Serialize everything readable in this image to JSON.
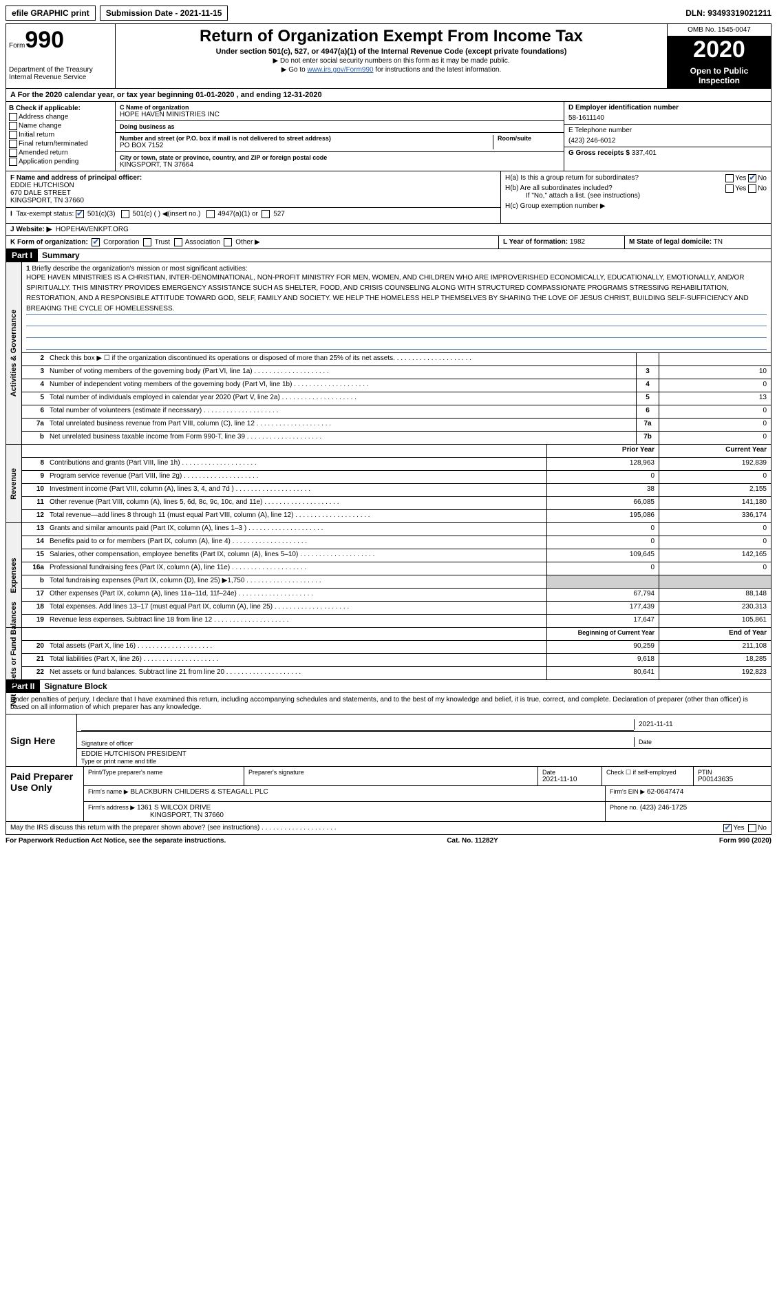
{
  "topbar": {
    "efile": "efile GRAPHIC print",
    "sub_label": "Submission Date - ",
    "sub_date": "2021-11-15",
    "dln_label": "DLN: ",
    "dln": "93493319021211"
  },
  "header": {
    "form_word": "Form",
    "form_num": "990",
    "dept": "Department of the Treasury\nInternal Revenue Service",
    "title": "Return of Organization Exempt From Income Tax",
    "sub": "Under section 501(c), 527, or 4947(a)(1) of the Internal Revenue Code (except private foundations)",
    "note1": "▶ Do not enter social security numbers on this form as it may be made public.",
    "note2_a": "▶ Go to ",
    "note2_link": "www.irs.gov/Form990",
    "note2_b": " for instructions and the latest information.",
    "omb": "OMB No. 1545-0047",
    "year": "2020",
    "openpub": "Open to Public Inspection"
  },
  "row_a": "A For the 2020 calendar year, or tax year beginning 01-01-2020    , and ending 12-31-2020",
  "box_b": {
    "hdr": "B Check if applicable:",
    "opts": [
      "Address change",
      "Name change",
      "Initial return",
      "Final return/terminated",
      "Amended return",
      "Application pending"
    ]
  },
  "box_c": {
    "lbl_name": "C Name of organization",
    "name": "HOPE HAVEN MINISTRIES INC",
    "dba_lbl": "Doing business as",
    "dba": "",
    "addr_lbl": "Number and street (or P.O. box if mail is not delivered to street address)",
    "room_lbl": "Room/suite",
    "addr": "PO BOX 7152",
    "city_lbl": "City or town, state or province, country, and ZIP or foreign postal code",
    "city": "KINGSPORT, TN  37664"
  },
  "box_d": {
    "lbl": "D Employer identification number",
    "val": "58-1611140"
  },
  "box_e": {
    "lbl": "E Telephone number",
    "val": "(423) 246-6012"
  },
  "box_g": {
    "lbl": "G Gross receipts $",
    "val": "337,401"
  },
  "box_f": {
    "lbl": "F  Name and address of principal officer:",
    "name": "EDDIE HUTCHISON",
    "addr": "670 DALE STREET",
    "city": "KINGSPORT, TN  37660"
  },
  "box_h": {
    "a": "H(a)  Is this a group return for subordinates?",
    "b": "H(b)  Are all subordinates included?",
    "b_note": "If \"No,\" attach a list. (see instructions)",
    "c": "H(c)  Group exemption number ▶"
  },
  "box_i": {
    "lbl": "Tax-exempt status:",
    "o1": "501(c)(3)",
    "o2": "501(c) (  ) ◀(insert no.)",
    "o3": "4947(a)(1) or",
    "o4": "527"
  },
  "box_j": {
    "lbl": "J Website: ▶",
    "val": "HOPEHAVENKPT.ORG"
  },
  "box_k": {
    "lbl": "K Form of organization:",
    "o1": "Corporation",
    "o2": "Trust",
    "o3": "Association",
    "o4": "Other ▶"
  },
  "box_l": {
    "lbl": "L Year of formation:",
    "val": "1982"
  },
  "box_m": {
    "lbl": "M State of legal domicile:",
    "val": "TN"
  },
  "part1": {
    "hdr": "Part I",
    "title": "Summary"
  },
  "mission": {
    "num": "1",
    "lbl": "Briefly describe the organization's mission or most significant activities:",
    "txt": "HOPE HAVEN MINISTRIES IS A CHRISTIAN, INTER-DENOMINATIONAL, NON-PROFIT MINISTRY FOR MEN, WOMEN, AND CHILDREN WHO ARE IMPROVERISHED ECONOMICALLY, EDUCATIONALLY, EMOTIONALLY, AND/OR SPIRITUALLY. THIS MINISTRY PROVIDES EMERGENCY ASSISTANCE SUCH AS SHELTER, FOOD, AND CRISIS COUNSELING ALONG WITH STRUCTURED COMPASSIONATE PROGRAMS STRESSING REHABILITATION, RESTORATION, AND A RESPONSIBLE ATTITUDE TOWARD GOD, SELF, FAMILY AND SOCIETY. WE HELP THE HOMELESS HELP THEMSELVES BY SHARING THE LOVE OF JESUS CHRIST, BUILDING SELF-SUFFICIENCY AND BREAKING THE CYCLE OF HOMELESSNESS."
  },
  "gov_lines": [
    {
      "n": "2",
      "t": "Check this box ▶ ☐  if the organization discontinued its operations or disposed of more than 25% of its net assets.",
      "b": "",
      "v": ""
    },
    {
      "n": "3",
      "t": "Number of voting members of the governing body (Part VI, line 1a)",
      "b": "3",
      "v": "10"
    },
    {
      "n": "4",
      "t": "Number of independent voting members of the governing body (Part VI, line 1b)",
      "b": "4",
      "v": "0"
    },
    {
      "n": "5",
      "t": "Total number of individuals employed in calendar year 2020 (Part V, line 2a)",
      "b": "5",
      "v": "13"
    },
    {
      "n": "6",
      "t": "Total number of volunteers (estimate if necessary)",
      "b": "6",
      "v": "0"
    },
    {
      "n": "7a",
      "t": "Total unrelated business revenue from Part VIII, column (C), line 12",
      "b": "7a",
      "v": "0"
    },
    {
      "n": "b",
      "t": "Net unrelated business taxable income from Form 990-T, line 39",
      "b": "7b",
      "v": "0"
    }
  ],
  "rev_hdr": {
    "p": "Prior Year",
    "c": "Current Year"
  },
  "rev_lines": [
    {
      "n": "8",
      "t": "Contributions and grants (Part VIII, line 1h)",
      "p": "128,963",
      "c": "192,839"
    },
    {
      "n": "9",
      "t": "Program service revenue (Part VIII, line 2g)",
      "p": "0",
      "c": "0"
    },
    {
      "n": "10",
      "t": "Investment income (Part VIII, column (A), lines 3, 4, and 7d )",
      "p": "38",
      "c": "2,155"
    },
    {
      "n": "11",
      "t": "Other revenue (Part VIII, column (A), lines 5, 6d, 8c, 9c, 10c, and 11e)",
      "p": "66,085",
      "c": "141,180"
    },
    {
      "n": "12",
      "t": "Total revenue—add lines 8 through 11 (must equal Part VIII, column (A), line 12)",
      "p": "195,086",
      "c": "336,174"
    }
  ],
  "exp_lines": [
    {
      "n": "13",
      "t": "Grants and similar amounts paid (Part IX, column (A), lines 1–3 )",
      "p": "0",
      "c": "0"
    },
    {
      "n": "14",
      "t": "Benefits paid to or for members (Part IX, column (A), line 4)",
      "p": "0",
      "c": "0"
    },
    {
      "n": "15",
      "t": "Salaries, other compensation, employee benefits (Part IX, column (A), lines 5–10)",
      "p": "109,645",
      "c": "142,165"
    },
    {
      "n": "16a",
      "t": "Professional fundraising fees (Part IX, column (A), line 11e)",
      "p": "0",
      "c": "0"
    },
    {
      "n": "b",
      "t": "Total fundraising expenses (Part IX, column (D), line 25) ▶1,750",
      "p": "GREY",
      "c": "GREY"
    },
    {
      "n": "17",
      "t": "Other expenses (Part IX, column (A), lines 11a–11d, 11f–24e)",
      "p": "67,794",
      "c": "88,148"
    },
    {
      "n": "18",
      "t": "Total expenses. Add lines 13–17 (must equal Part IX, column (A), line 25)",
      "p": "177,439",
      "c": "230,313"
    },
    {
      "n": "19",
      "t": "Revenue less expenses. Subtract line 18 from line 12",
      "p": "17,647",
      "c": "105,861"
    }
  ],
  "net_hdr": {
    "p": "Beginning of Current Year",
    "c": "End of Year"
  },
  "net_lines": [
    {
      "n": "20",
      "t": "Total assets (Part X, line 16)",
      "p": "90,259",
      "c": "211,108"
    },
    {
      "n": "21",
      "t": "Total liabilities (Part X, line 26)",
      "p": "9,618",
      "c": "18,285"
    },
    {
      "n": "22",
      "t": "Net assets or fund balances. Subtract line 21 from line 20",
      "p": "80,641",
      "c": "192,823"
    }
  ],
  "side_labels": {
    "gov": "Activities & Governance",
    "rev": "Revenue",
    "exp": "Expenses",
    "net": "Net Assets or Fund Balances"
  },
  "part2": {
    "hdr": "Part II",
    "title": "Signature Block"
  },
  "penalty": "Under penalties of perjury, I declare that I have examined this return, including accompanying schedules and statements, and to the best of my knowledge and belief, it is true, correct, and complete. Declaration of preparer (other than officer) is based on all information of which preparer has any knowledge.",
  "sign": {
    "lbl": "Sign Here",
    "sig_lbl": "Signature of officer",
    "date_lbl": "Date",
    "date": "2021-11-11",
    "name": "EDDIE HUTCHISON  PRESIDENT",
    "name_lbl": "Type or print name and title"
  },
  "paid": {
    "lbl": "Paid Preparer Use Only",
    "pn_lbl": "Print/Type preparer's name",
    "ps_lbl": "Preparer's signature",
    "d_lbl": "Date",
    "d": "2021-11-10",
    "chk_lbl": "Check ☐ if self-employed",
    "ptin_lbl": "PTIN",
    "ptin": "P00143635",
    "firm_lbl": "Firm's name    ▶",
    "firm": "BLACKBURN CHILDERS & STEAGALL PLC",
    "ein_lbl": "Firm's EIN ▶",
    "ein": "62-0647474",
    "addr_lbl": "Firm's address ▶",
    "addr": "1361 S WILCOX DRIVE",
    "city": "KINGSPORT, TN  37660",
    "ph_lbl": "Phone no.",
    "ph": "(423) 246-1725"
  },
  "may": "May the IRS discuss this return with the preparer shown above? (see instructions)",
  "footer": {
    "l": "For Paperwork Reduction Act Notice, see the separate instructions.",
    "m": "Cat. No. 11282Y",
    "r": "Form 990 (2020)"
  }
}
